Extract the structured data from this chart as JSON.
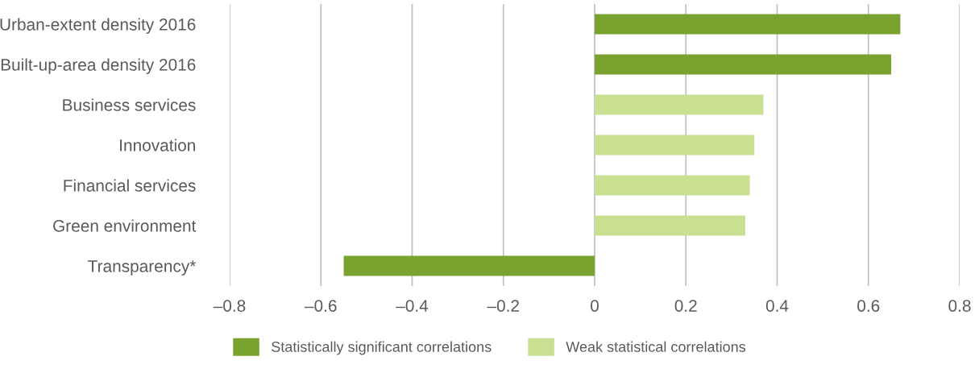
{
  "chart_data": {
    "type": "bar",
    "orientation": "horizontal",
    "categories": [
      "Urban-extent density 2016",
      "Built-up-area density 2016",
      "Business services",
      "Innovation",
      "Financial services",
      "Green environment",
      "Transparency*"
    ],
    "series": [
      {
        "name": "Statistically significant correlations",
        "color": "#79a22e",
        "values": [
          0.67,
          0.65,
          null,
          null,
          null,
          null,
          -0.55
        ]
      },
      {
        "name": "Weak statistical correlations",
        "color": "#c9df91",
        "values": [
          null,
          null,
          0.37,
          0.35,
          0.34,
          0.33,
          null
        ]
      }
    ],
    "xlim": [
      -0.8,
      0.8
    ],
    "xticks": [
      {
        "value": -0.8,
        "label": "–0.8"
      },
      {
        "value": -0.6,
        "label": "–0.6"
      },
      {
        "value": -0.4,
        "label": "–0.4"
      },
      {
        "value": -0.2,
        "label": "–0.2"
      },
      0,
      0.2,
      0.4,
      0.6,
      0.8
    ],
    "grid": "x",
    "legend": "bottom"
  }
}
